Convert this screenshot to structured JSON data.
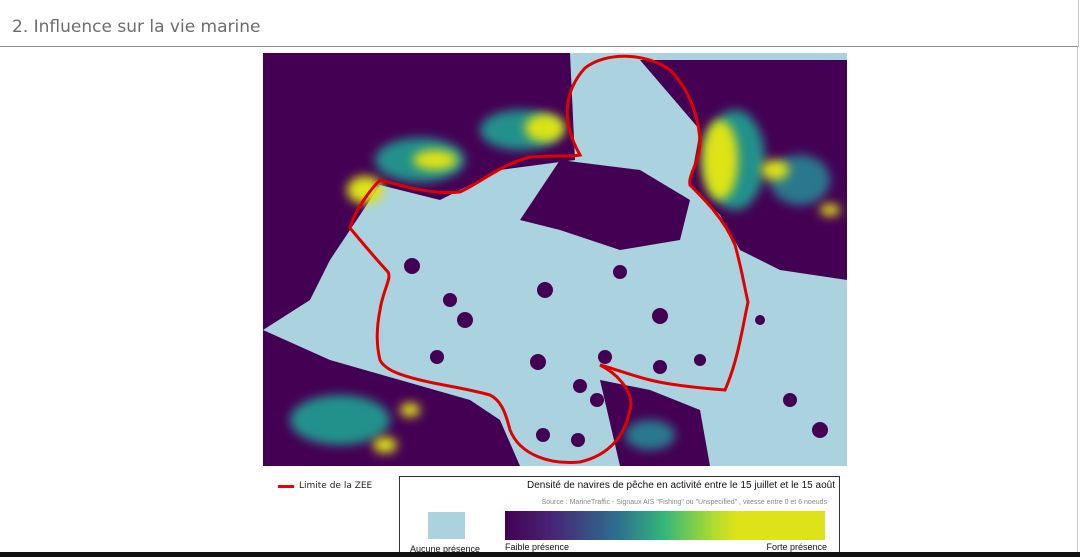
{
  "header": {
    "title": "2.  Influence sur la vie marine"
  },
  "map": {
    "colors": {
      "no_presence": "#aad3df",
      "low": "#440154",
      "high": "#dce319",
      "zee_line": "#e00000"
    },
    "legend": {
      "zee_label": "Limite de la ZEE",
      "title": "Densité de navires de pêche en activité entre le 15 juillet et le 15 août",
      "source": "Source : MarineTraffic - Signaux AIS \"Fishing\" ou \"Unspecified\" , vitesse entre 0 et 6 noeuds",
      "no_presence": "Aucune présence",
      "low": "Faible présence",
      "high": "Forte présence"
    }
  }
}
